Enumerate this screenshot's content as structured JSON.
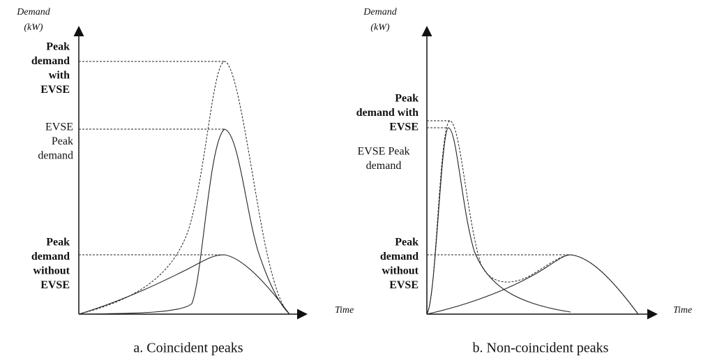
{
  "panels": [
    {
      "y_axis_label": [
        "Demand",
        "(kW)"
      ],
      "x_axis_label": "Time",
      "peak_with_evse": [
        "Peak",
        "demand",
        "with",
        "EVSE"
      ],
      "evse_peak": [
        "EVSE",
        "Peak",
        "demand"
      ],
      "peak_without_evse": [
        "Peak",
        "demand",
        "without",
        "EVSE"
      ],
      "caption": "a. Coincident peaks"
    },
    {
      "y_axis_label": [
        "Demand",
        "(kW)"
      ],
      "x_axis_label": "Time",
      "peak_with_evse": [
        "Peak",
        "demand with",
        "EVSE"
      ],
      "evse_peak": [
        "EVSE Peak",
        "demand"
      ],
      "peak_without_evse": [
        "Peak",
        "demand",
        "without",
        "EVSE"
      ],
      "caption": "b. Non-coincident peaks"
    }
  ]
}
